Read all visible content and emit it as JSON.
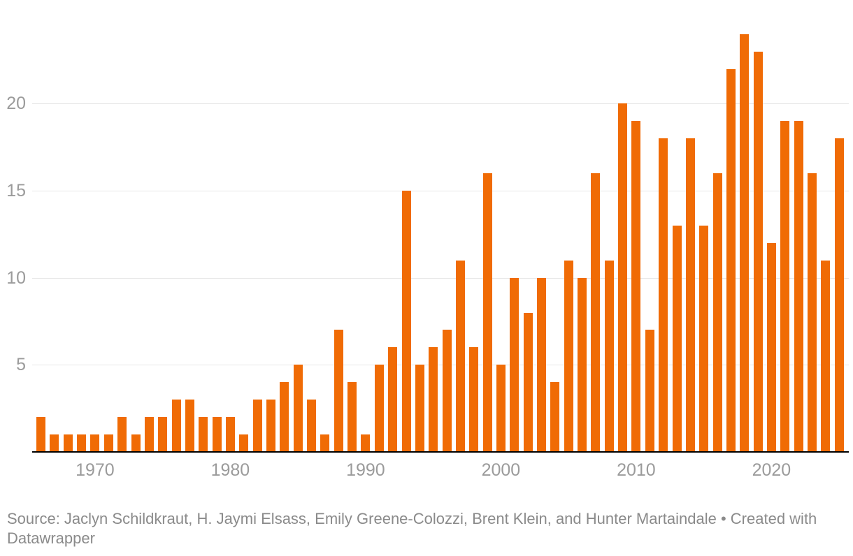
{
  "chart_data": {
    "type": "bar",
    "title": "",
    "xlabel": "",
    "ylabel": "",
    "x": [
      1966,
      1967,
      1968,
      1969,
      1970,
      1971,
      1972,
      1973,
      1974,
      1975,
      1976,
      1977,
      1978,
      1979,
      1980,
      1981,
      1982,
      1983,
      1984,
      1985,
      1986,
      1987,
      1988,
      1989,
      1990,
      1991,
      1992,
      1993,
      1994,
      1995,
      1996,
      1997,
      1998,
      1999,
      2000,
      2001,
      2002,
      2003,
      2004,
      2005,
      2006,
      2007,
      2008,
      2009,
      2010,
      2011,
      2012,
      2013,
      2014,
      2015,
      2016,
      2017,
      2018,
      2019,
      2020,
      2021,
      2022,
      2023,
      2024,
      2025
    ],
    "values": [
      2,
      1,
      1,
      1,
      1,
      1,
      2,
      1,
      2,
      2,
      3,
      3,
      2,
      2,
      2,
      1,
      3,
      3,
      4,
      5,
      3,
      1,
      7,
      4,
      1,
      5,
      6,
      15,
      5,
      6,
      7,
      11,
      6,
      16,
      5,
      10,
      8,
      10,
      4,
      11,
      10,
      16,
      11,
      20,
      19,
      7,
      18,
      13,
      18,
      13,
      16,
      22,
      24,
      23,
      12,
      19,
      19,
      16,
      11,
      18
    ],
    "ylim": [
      0,
      25
    ],
    "yticks": [
      5,
      10,
      15,
      20
    ],
    "xticks": [
      1970,
      1980,
      1990,
      2000,
      2010,
      2020
    ],
    "grid": "horizontal",
    "legend": "none"
  },
  "footer": {
    "source_text": "Source: Jaclyn Schildkraut, H. Jaymi Elsass, Emily Greene-Colozzi, Brent Klein, and Hunter Martaindale • Created with Datawrapper"
  },
  "colors": {
    "bar": "#f06b05",
    "gridline": "#e6e6e6",
    "axis_label": "#9b9b9b",
    "baseline": "#000000",
    "source_text": "#8a8a8a",
    "background": "#ffffff"
  }
}
